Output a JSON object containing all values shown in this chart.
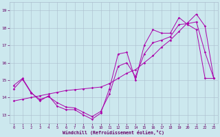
{
  "xlabel": "Windchill (Refroidissement éolien,°C)",
  "bg_color": "#cce8ee",
  "grid_color": "#aabccc",
  "line_color": "#aa00aa",
  "xlim": [
    -0.5,
    23.5
  ],
  "ylim": [
    12.5,
    19.5
  ],
  "yticks": [
    13,
    14,
    15,
    16,
    17,
    18,
    19
  ],
  "xticks": [
    0,
    1,
    2,
    3,
    4,
    5,
    6,
    7,
    8,
    9,
    10,
    11,
    12,
    13,
    14,
    15,
    16,
    17,
    18,
    19,
    20,
    21,
    22,
    23
  ],
  "line1_x": [
    0,
    1,
    2,
    3,
    4,
    5,
    6,
    7,
    8,
    9,
    10,
    11,
    12,
    13,
    14,
    15,
    16,
    17,
    18,
    19,
    20,
    21,
    22,
    23
  ],
  "line1_y": [
    14.7,
    15.1,
    14.3,
    13.8,
    14.1,
    13.5,
    13.3,
    13.3,
    13.0,
    12.75,
    13.1,
    14.5,
    16.5,
    16.6,
    15.0,
    17.0,
    17.9,
    17.7,
    17.7,
    18.6,
    18.2,
    17.9,
    15.1,
    15.1
  ],
  "line2_x": [
    0,
    1,
    2,
    3,
    4,
    5,
    6,
    7,
    8,
    9,
    10,
    11,
    12,
    13,
    14,
    15,
    16,
    17,
    18,
    19,
    20,
    21,
    22,
    23
  ],
  "line2_y": [
    13.8,
    13.9,
    14.0,
    14.1,
    14.2,
    14.3,
    14.4,
    14.45,
    14.5,
    14.55,
    14.6,
    14.8,
    15.1,
    15.4,
    15.6,
    16.0,
    16.4,
    16.9,
    17.3,
    17.8,
    18.3,
    18.8,
    18.1,
    15.1
  ],
  "line3_x": [
    0,
    1,
    2,
    3,
    4,
    5,
    6,
    7,
    8,
    9,
    10,
    11,
    12,
    13,
    14,
    15,
    16,
    17,
    18,
    19,
    20,
    21,
    22,
    23
  ],
  "line3_y": [
    14.5,
    15.05,
    14.25,
    13.9,
    14.05,
    13.7,
    13.45,
    13.4,
    13.15,
    12.9,
    13.2,
    14.2,
    15.8,
    16.0,
    15.2,
    16.5,
    17.15,
    17.3,
    17.5,
    18.2,
    18.25,
    18.35,
    16.6,
    15.1
  ]
}
